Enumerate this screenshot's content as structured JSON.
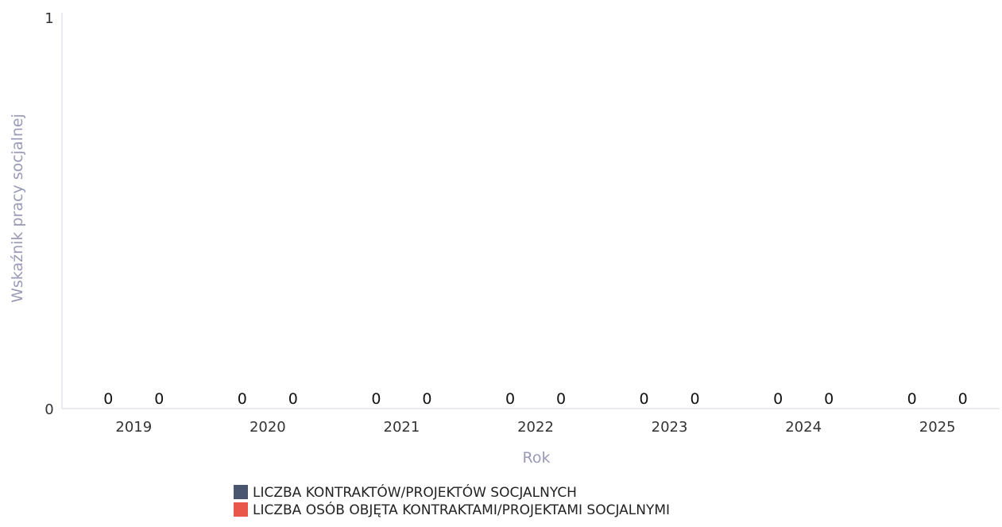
{
  "chart_data": {
    "type": "bar",
    "title": "",
    "xlabel": "Rok",
    "ylabel": "Wskaźnik pracy socjalnej",
    "ylim": [
      0,
      1
    ],
    "yticks": [
      "0",
      "1"
    ],
    "categories": [
      "2019",
      "2020",
      "2021",
      "2022",
      "2023",
      "2024",
      "2025"
    ],
    "series": [
      {
        "name": "LICZBA KONTRAKTÓW/PROJEKTÓW SOCJALNYCH",
        "color": "#4a5570",
        "values": [
          0,
          0,
          0,
          0,
          0,
          0,
          0
        ],
        "labels": [
          "0",
          "0",
          "0",
          "0",
          "0",
          "0",
          "0"
        ]
      },
      {
        "name": "LICZBA OSÓB OBJĘTA KONTRAKTAMI/PROJEKTAMI SOCJALNYMI",
        "color": "#e8574a",
        "values": [
          0,
          0,
          0,
          0,
          0,
          0,
          0
        ],
        "labels": [
          "0",
          "0",
          "0",
          "0",
          "0",
          "0",
          "0"
        ]
      }
    ],
    "grid": false,
    "legend": "bottom"
  }
}
